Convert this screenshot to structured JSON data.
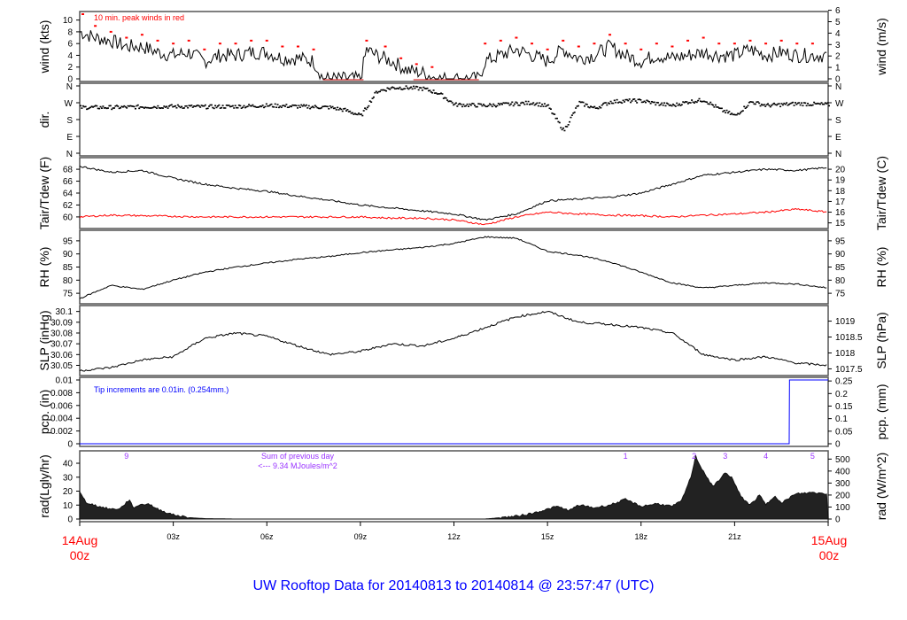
{
  "title": "UW Rooftop Data for 20140813  to  20140814 @ 23:57:47  (UTC)",
  "start_label": [
    "14Aug",
    "00z"
  ],
  "end_label": [
    "15Aug",
    "00z"
  ],
  "x_ticks": [
    "03z",
    "06z",
    "09z",
    "12z",
    "15z",
    "18z",
    "21z"
  ],
  "hours": [
    0,
    1,
    2,
    3,
    4,
    5,
    6,
    7,
    8,
    9,
    10,
    11,
    12,
    13,
    14,
    15,
    16,
    17,
    18,
    19,
    20,
    21,
    22,
    23,
    24
  ],
  "chart_data": [
    {
      "type": "line",
      "ylabel": "wind (kts)",
      "ylabel_right": "wind (m/s)",
      "ylim": [
        0,
        11
      ],
      "ticks": [
        0,
        2,
        4,
        6,
        8,
        10
      ],
      "ticks_right": [
        0,
        1,
        2,
        3,
        4,
        5,
        6
      ],
      "right_factor": 0.5144,
      "annotation": "10 min. peak winds in red",
      "peak_color": "#ff0000",
      "x": [
        0,
        0.5,
        1,
        1.5,
        2,
        2.5,
        3,
        3.5,
        4,
        4.5,
        5,
        5.5,
        6,
        6.5,
        7,
        7.5,
        7.8,
        8.5,
        9,
        9.2,
        9.5,
        10,
        10.5,
        11,
        11.5,
        12,
        12.5,
        12.8,
        13,
        13.5,
        14,
        14.5,
        15,
        15.5,
        16,
        16.5,
        17,
        17.5,
        18,
        18.5,
        19,
        19.5,
        20,
        20.5,
        21,
        21.5,
        22,
        22.5,
        23,
        23.5,
        24
      ],
      "values": [
        8,
        7,
        6.5,
        5.5,
        5.5,
        4.5,
        4,
        4.5,
        3,
        4,
        4,
        4.5,
        4.5,
        3.5,
        3.5,
        3,
        0,
        0,
        0,
        5,
        4,
        3,
        1.5,
        1,
        0,
        0,
        0,
        0,
        3,
        4,
        5,
        4,
        3,
        5,
        3.5,
        4,
        5.5,
        4,
        3,
        4,
        3.5,
        4,
        4.5,
        4,
        4,
        5,
        4,
        4.5,
        4,
        4,
        4
      ],
      "peaks_x": [
        0.1,
        0.5,
        1,
        1.5,
        2,
        2.5,
        3,
        3.5,
        4,
        4.5,
        5,
        5.5,
        6,
        6.5,
        7,
        7.5,
        9.2,
        9.8,
        10.3,
        10.8,
        11.3,
        13,
        13.5,
        14,
        14.5,
        15,
        15.5,
        16,
        16.5,
        17,
        17.5,
        18,
        18.5,
        19,
        19.5,
        20,
        20.5,
        21,
        21.5,
        22,
        22.5,
        23,
        23.5
      ],
      "peaks": [
        11,
        9,
        8,
        7,
        7.5,
        6.5,
        6,
        6.5,
        5,
        6,
        6,
        6.5,
        6.5,
        5.5,
        5.5,
        5,
        6.5,
        5.5,
        3.5,
        2.5,
        2,
        6,
        6.5,
        7,
        6,
        5,
        6.5,
        5.5,
        6,
        7.5,
        6,
        5,
        6,
        5.5,
        6.5,
        7,
        6,
        6,
        6.5,
        6,
        6.5,
        6,
        6
      ]
    },
    {
      "type": "scatter",
      "ylabel": "dir.",
      "ylim": [
        0,
        360
      ],
      "tick_labels": [
        "N",
        "E",
        "S",
        "W",
        "N"
      ],
      "x": [
        0,
        1,
        2,
        3,
        4,
        5,
        6,
        7,
        8,
        8.5,
        9,
        9.5,
        10,
        10.5,
        11,
        11.5,
        12,
        13,
        14,
        14.5,
        15,
        15.5,
        16,
        16.5,
        17,
        17.5,
        18,
        18.5,
        19,
        19.5,
        20,
        20.5,
        21,
        21.5,
        22,
        23,
        24
      ],
      "values": [
        245,
        245,
        248,
        250,
        248,
        250,
        255,
        250,
        245,
        230,
        200,
        330,
        350,
        350,
        345,
        320,
        260,
        255,
        265,
        270,
        250,
        120,
        270,
        240,
        275,
        280,
        280,
        265,
        255,
        275,
        285,
        235,
        200,
        275,
        255,
        265,
        260
      ]
    },
    {
      "type": "line",
      "ylabel": "Tair/Tdew (F)",
      "ylabel_right": "Tair/Tdew (C)",
      "ylim": [
        58.5,
        69.5
      ],
      "ticks": [
        60,
        62,
        64,
        66,
        68
      ],
      "ticks_right": [
        15,
        16,
        17,
        18,
        19,
        20
      ],
      "series": [
        {
          "name": "Tair",
          "color": "#000000",
          "values": [
            68.5,
            67.5,
            67.8,
            66.5,
            65.5,
            64.8,
            64.3,
            63.5,
            62.8,
            62,
            61.5,
            61,
            60.5,
            59.5,
            60.5,
            62.7,
            63,
            63.3,
            64,
            65.5,
            67,
            67.5,
            68,
            67.8,
            68.3
          ]
        },
        {
          "name": "Tdew",
          "color": "#ff0000",
          "values": [
            60,
            60.3,
            60.2,
            60.1,
            60,
            60,
            60,
            60,
            60,
            60,
            59.8,
            59.8,
            59.5,
            58.7,
            60,
            60.8,
            60.5,
            60.3,
            60.2,
            60,
            60.3,
            60.5,
            60.8,
            61.3,
            60.8
          ]
        }
      ]
    },
    {
      "type": "line",
      "ylabel": "RH (%)",
      "ylabel_right": "RH (%)",
      "ylim": [
        72,
        98
      ],
      "ticks": [
        75,
        80,
        85,
        90,
        95
      ],
      "values": [
        73,
        78,
        76.5,
        80,
        83,
        85,
        86.5,
        88,
        89,
        90.5,
        91.5,
        92.5,
        94,
        96.5,
        96,
        91,
        89.5,
        87,
        83,
        79,
        77,
        78,
        79,
        78.5,
        77
      ]
    },
    {
      "type": "line",
      "ylabel": "SLP (inHg)",
      "ylabel_right": "SLP (hPa)",
      "ylim": [
        30.043,
        30.103
      ],
      "ticks": [
        30.05,
        30.06,
        30.07,
        30.08,
        30.09,
        30.1
      ],
      "ticks_right": [
        1017.5,
        1018,
        1018.5,
        1019
      ],
      "values": [
        30.045,
        30.048,
        30.055,
        30.058,
        30.075,
        30.08,
        30.077,
        30.068,
        30.06,
        30.063,
        30.07,
        30.068,
        30.075,
        30.085,
        30.095,
        30.1,
        30.09,
        30.088,
        30.085,
        30.08,
        30.06,
        30.055,
        30.058,
        30.052,
        30.05
      ]
    },
    {
      "type": "line",
      "ylabel": "pcp. (in)",
      "ylabel_right": "pcp. (mm)",
      "ylim": [
        0,
        0.01
      ],
      "ticks": [
        0,
        0.002,
        0.004,
        0.006,
        0.008,
        0.01
      ],
      "ticks_right": [
        0,
        0.05,
        0.1,
        0.15,
        0.2,
        0.25
      ],
      "annotation": "Tip increments are 0.01in. (0.254mm.)",
      "color": "#0000ff",
      "x": [
        0,
        22.75,
        22.76,
        24
      ],
      "values": [
        0,
        0,
        0.01,
        0.01
      ]
    },
    {
      "type": "area",
      "ylabel": "rad(Lgly/hr)",
      "ylabel_right": "rad (W/m^2)",
      "ylim": [
        0,
        47
      ],
      "ticks": [
        0,
        10,
        20,
        30,
        40
      ],
      "ticks_right": [
        0,
        100,
        200,
        300,
        400,
        500
      ],
      "x": [
        0,
        0.2,
        0.6,
        1,
        1.3,
        1.6,
        1.7,
        1.9,
        2.2,
        2.5,
        3,
        3.5,
        4,
        5,
        13,
        14,
        14.5,
        15,
        15.3,
        15.7,
        16,
        16.5,
        17,
        17.5,
        18,
        18.5,
        19,
        19.3,
        19.6,
        19.75,
        19.9,
        20.3,
        20.7,
        20.9,
        21.2,
        21.5,
        21.8,
        22,
        22.3,
        22.5,
        22.8,
        23,
        23.5,
        24
      ],
      "values": [
        19,
        12,
        9,
        7,
        7.5,
        14,
        8,
        10,
        11,
        7,
        3,
        1,
        0.3,
        0,
        0,
        2,
        4,
        7,
        9,
        6,
        10,
        8,
        10,
        14,
        9,
        11,
        9,
        13,
        30,
        45,
        38,
        23,
        33,
        30,
        16,
        10,
        17,
        10,
        17,
        11,
        16,
        18,
        19,
        18
      ],
      "markers": {
        "labels": [
          "9",
          "1",
          "2",
          "3",
          "4",
          "5"
        ],
        "hours": [
          1.5,
          17.5,
          19.7,
          20.7,
          22.0,
          23.5
        ],
        "color": "#9933ff"
      },
      "annotation": [
        "Sum of previous day",
        "<--- 9.34 MJoules/m^2"
      ]
    }
  ]
}
